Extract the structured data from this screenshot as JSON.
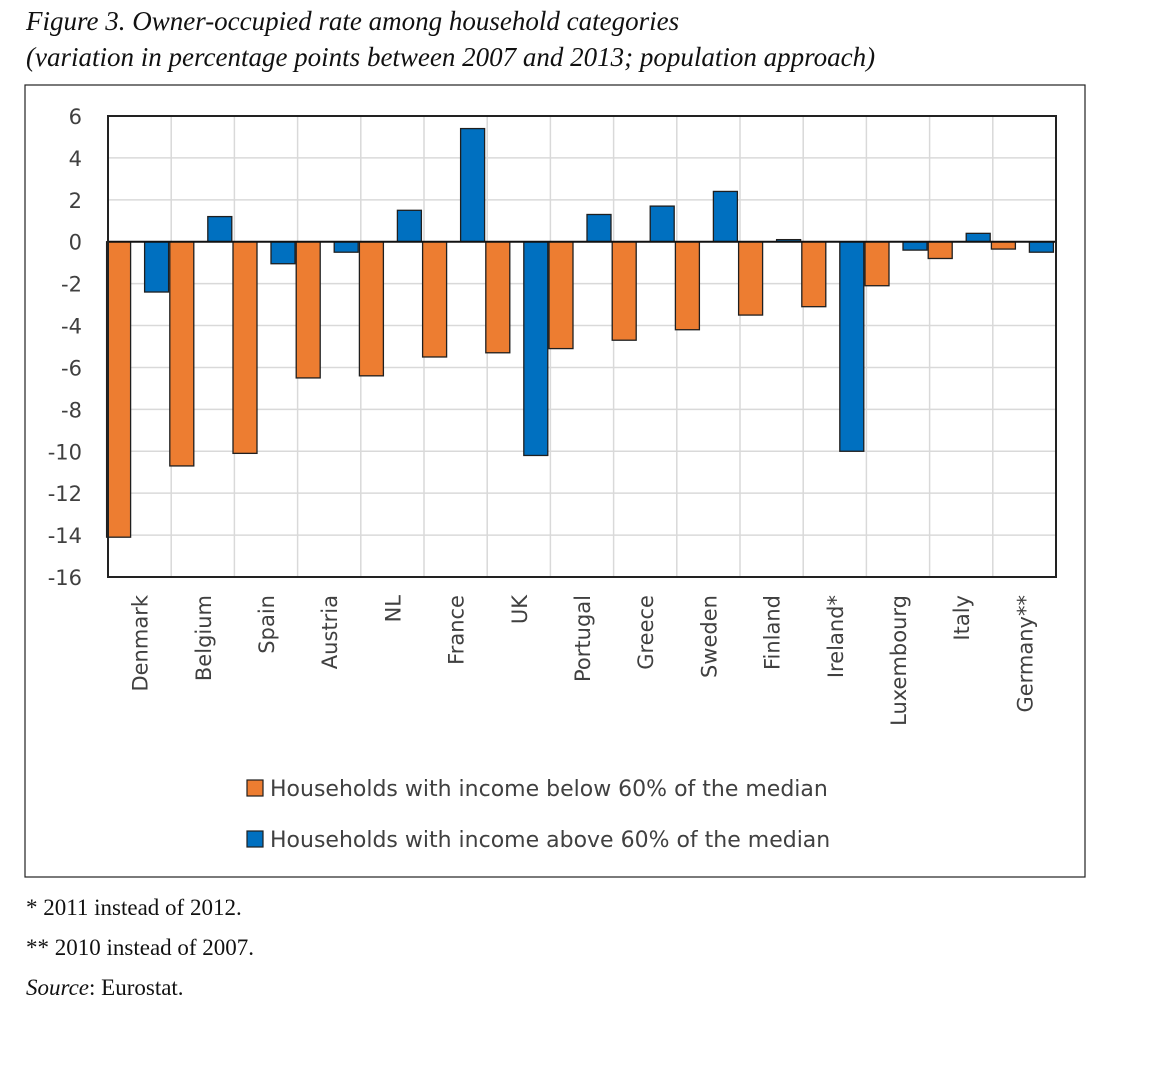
{
  "figure": {
    "title": "Figure 3. Owner-occupied rate among household categories",
    "subtitle": "(variation in percentage points between 2007 and 2013; population approach)"
  },
  "notes": {
    "note1": "* 2011 instead of 2012.",
    "note2": "** 2010 instead of 2007.",
    "source_label": "Source",
    "source_value": ": Eurostat."
  },
  "chart_data": {
    "type": "bar",
    "title": "",
    "xlabel": "",
    "ylabel": "",
    "ylim": [
      -16,
      6
    ],
    "yticks": [
      6,
      4,
      2,
      0,
      -2,
      -4,
      -6,
      -8,
      -10,
      -12,
      -14,
      -16
    ],
    "grid": true,
    "legend_placement": "bottom",
    "categories": [
      "Denmark",
      "Belgium",
      "Spain",
      "Austria",
      "NL",
      "France",
      "UK",
      "Portugal",
      "Greece",
      "Sweden",
      "Finland",
      "Ireland*",
      "Luxembourg",
      "Italy",
      "Germany**"
    ],
    "series": [
      {
        "name": "Households with income below 60% of the median",
        "color": "#ED7D31",
        "values": [
          -14.1,
          -10.7,
          -10.1,
          -6.5,
          -6.4,
          -5.5,
          -5.3,
          -5.1,
          -4.7,
          -4.2,
          -3.5,
          -3.1,
          -2.1,
          -0.8,
          -0.35
        ]
      },
      {
        "name": "Households with income above 60% of the median",
        "color": "#0070C0",
        "values": [
          -2.4,
          1.2,
          -1.05,
          -0.5,
          1.5,
          5.4,
          -10.2,
          1.3,
          1.7,
          2.4,
          0.1,
          -10.0,
          -0.4,
          0.4,
          -0.5
        ]
      }
    ]
  }
}
